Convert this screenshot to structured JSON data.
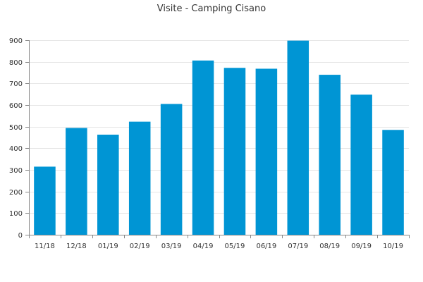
{
  "chart_data": {
    "type": "bar",
    "title": "Visite - Camping Cisano",
    "xlabel": "",
    "ylabel": "",
    "categories": [
      "11/18",
      "12/18",
      "01/19",
      "02/19",
      "03/19",
      "04/19",
      "05/19",
      "06/19",
      "07/19",
      "08/19",
      "09/19",
      "10/19"
    ],
    "values": [
      315,
      494,
      463,
      523,
      605,
      806,
      772,
      768,
      898,
      740,
      648,
      485
    ],
    "ylim": [
      0,
      900
    ],
    "yticks": [
      0,
      100,
      200,
      300,
      400,
      500,
      600,
      700,
      800,
      900
    ],
    "grid": true,
    "legend": "none",
    "bar_color": "#0095D4"
  }
}
